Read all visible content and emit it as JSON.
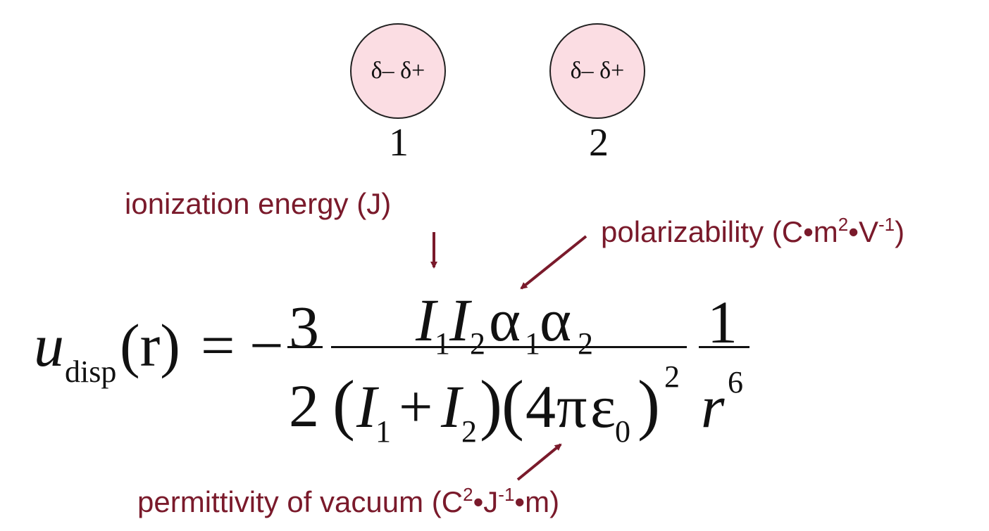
{
  "atoms": [
    {
      "charges": "δ–  δ+",
      "number": "1"
    },
    {
      "charges": "δ–  δ+",
      "number": "2"
    }
  ],
  "annotations": {
    "ionization": "ionization energy (J)",
    "polarizability": {
      "text": "polarizability (C•m",
      "sup1": "2",
      "mid": "•V",
      "sup2": "-1",
      "end": ")"
    },
    "permittivity": {
      "text": "permittivity of vacuum (C",
      "sup1": "2",
      "mid": "•J",
      "sup2": "-1",
      "end": "•m)"
    }
  },
  "equation": {
    "lhs_symbol": "u",
    "lhs_subscript": "disp",
    "lhs_arg": "(r)",
    "equals": "=",
    "minus": "−",
    "coef_num": "3",
    "coef_den": "2",
    "num": {
      "I": "I",
      "one": "1",
      "two": "2",
      "alpha": "α"
    },
    "den": {
      "plus": "+",
      "four": "4",
      "pi": "π",
      "eps": "ε",
      "zero": "0",
      "sq": "2"
    },
    "last_num": "1",
    "last_den_r": "r",
    "last_den_exp": "6"
  },
  "colors": {
    "annotation": "#7a1a2b",
    "atom_fill": "#fbdde3",
    "text": "#111111"
  }
}
